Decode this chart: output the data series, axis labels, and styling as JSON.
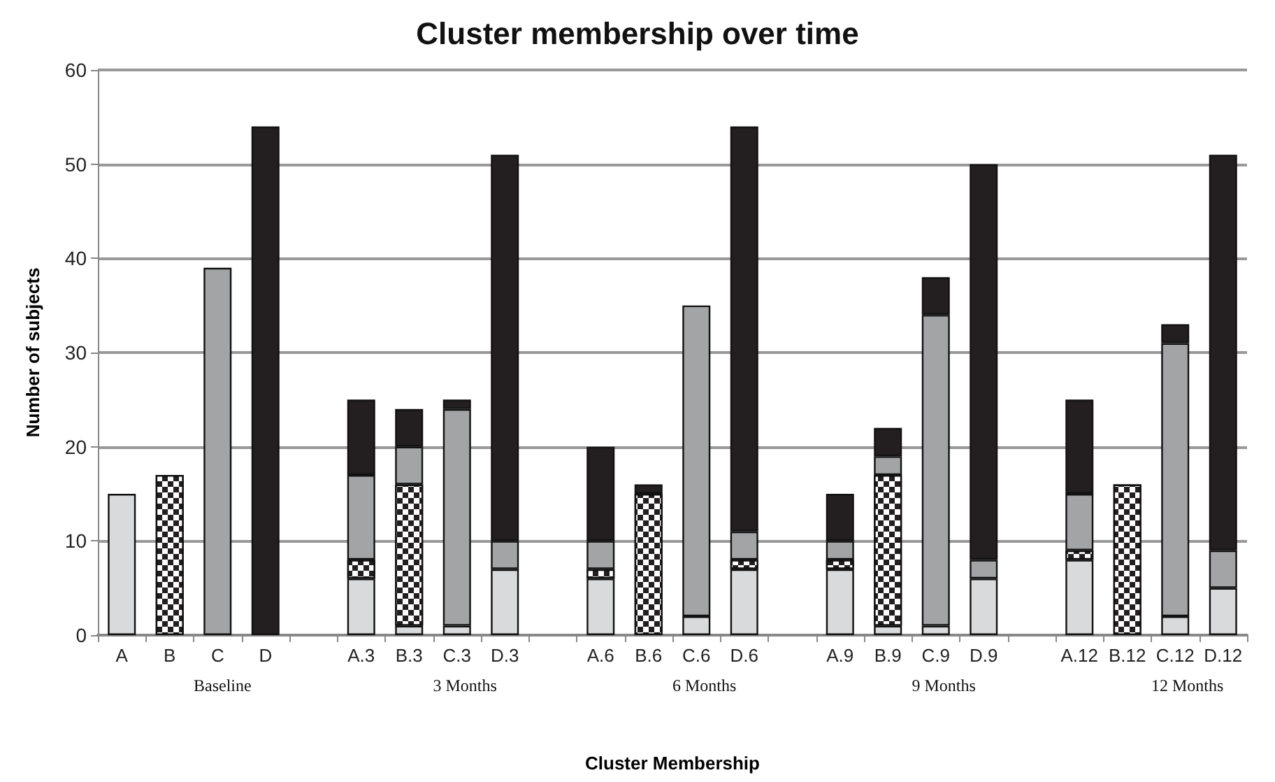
{
  "chart_data": {
    "type": "bar",
    "stacked": true,
    "title": "Cluster membership over time",
    "xlabel": "Cluster Membership",
    "ylabel": "Number of subjects",
    "categories": [
      "A",
      "B",
      "C",
      "D",
      null,
      "A.3",
      "B.3",
      "C.3",
      "D.3",
      null,
      "A.6",
      "B.6",
      "C.6",
      "D.6",
      null,
      "A.9",
      "B.9",
      "C.9",
      "D.9",
      null,
      "A.12",
      "B.12",
      "C.12",
      "D.12"
    ],
    "series": [
      {
        "color": "#d9dadb",
        "values": [
          15,
          null,
          null,
          null,
          null,
          6,
          1,
          1,
          7,
          null,
          6,
          null,
          2,
          7,
          null,
          7,
          1,
          1,
          6,
          null,
          8,
          null,
          2,
          5
        ]
      },
      {
        "color": "#231f20",
        "values": [
          null,
          17,
          null,
          null,
          null,
          2,
          15,
          null,
          null,
          null,
          1,
          15,
          null,
          1,
          null,
          1,
          16,
          null,
          null,
          null,
          1,
          16,
          null,
          null
        ]
      },
      {
        "color": "#a3a4a6",
        "values": [
          null,
          null,
          39,
          null,
          null,
          9,
          4,
          23,
          3,
          null,
          3,
          null,
          33,
          3,
          null,
          2,
          2,
          33,
          2,
          null,
          6,
          null,
          29,
          4
        ]
      },
      {
        "color": "#231f20",
        "values": [
          null,
          null,
          null,
          54,
          null,
          8,
          4,
          1,
          41,
          null,
          10,
          1,
          null,
          43,
          null,
          5,
          3,
          4,
          42,
          null,
          10,
          null,
          2,
          42
        ]
      }
    ],
    "annotations": [
      "Baseline",
      "3 Months",
      "6 Months",
      "9 Months",
      "12 Months"
    ],
    "ylim": [
      0,
      60
    ],
    "yticks": [
      0,
      10,
      20,
      30,
      40,
      50,
      60
    ],
    "grid": "y"
  }
}
